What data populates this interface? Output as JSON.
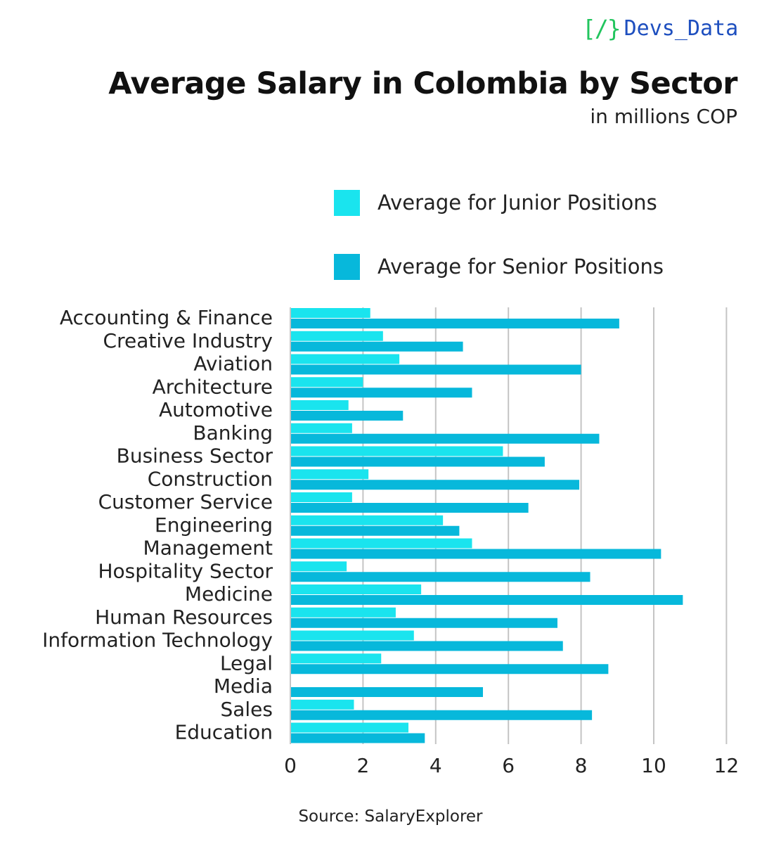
{
  "logo": {
    "bracket_text": "[/}",
    "text": "Devs_Data"
  },
  "colors": {
    "junior": "#1ae4ee",
    "senior": "#07b8db",
    "logo_bracket": "#22c55e",
    "logo_text": "#1e4fbf"
  },
  "chart_data": {
    "type": "bar",
    "orientation": "horizontal",
    "title": "Average Salary in Colombia by Sector",
    "subtitle": "in millions COP",
    "legend_placement": "top-right",
    "grid": true,
    "xlim": [
      0,
      12
    ],
    "xticks": [
      0,
      2,
      4,
      6,
      8,
      10,
      12
    ],
    "categories": [
      "Accounting & Finance",
      "Creative Industry",
      "Aviation",
      "Architecture",
      "Automotive",
      "Banking",
      "Business Sector",
      "Construction",
      "Customer Service",
      "Engineering",
      "Management",
      "Hospitality Sector",
      "Medicine",
      "Human Resources",
      "Information Technology",
      "Legal",
      "Media",
      "Sales",
      "Education"
    ],
    "series": [
      {
        "name": "Average for Junior Positions",
        "values": [
          2.2,
          2.55,
          3.0,
          2.0,
          1.6,
          1.7,
          5.85,
          2.15,
          1.7,
          4.2,
          5.0,
          1.55,
          3.6,
          2.9,
          3.4,
          2.5,
          0,
          1.75,
          3.25
        ]
      },
      {
        "name": "Average for Senior Positions",
        "values": [
          9.05,
          4.75,
          8.0,
          5.0,
          3.1,
          8.5,
          7.0,
          7.95,
          6.55,
          4.65,
          10.2,
          8.25,
          10.8,
          7.35,
          7.5,
          8.75,
          5.3,
          8.3,
          3.7
        ]
      }
    ],
    "source": "Source: SalaryExplorer"
  }
}
